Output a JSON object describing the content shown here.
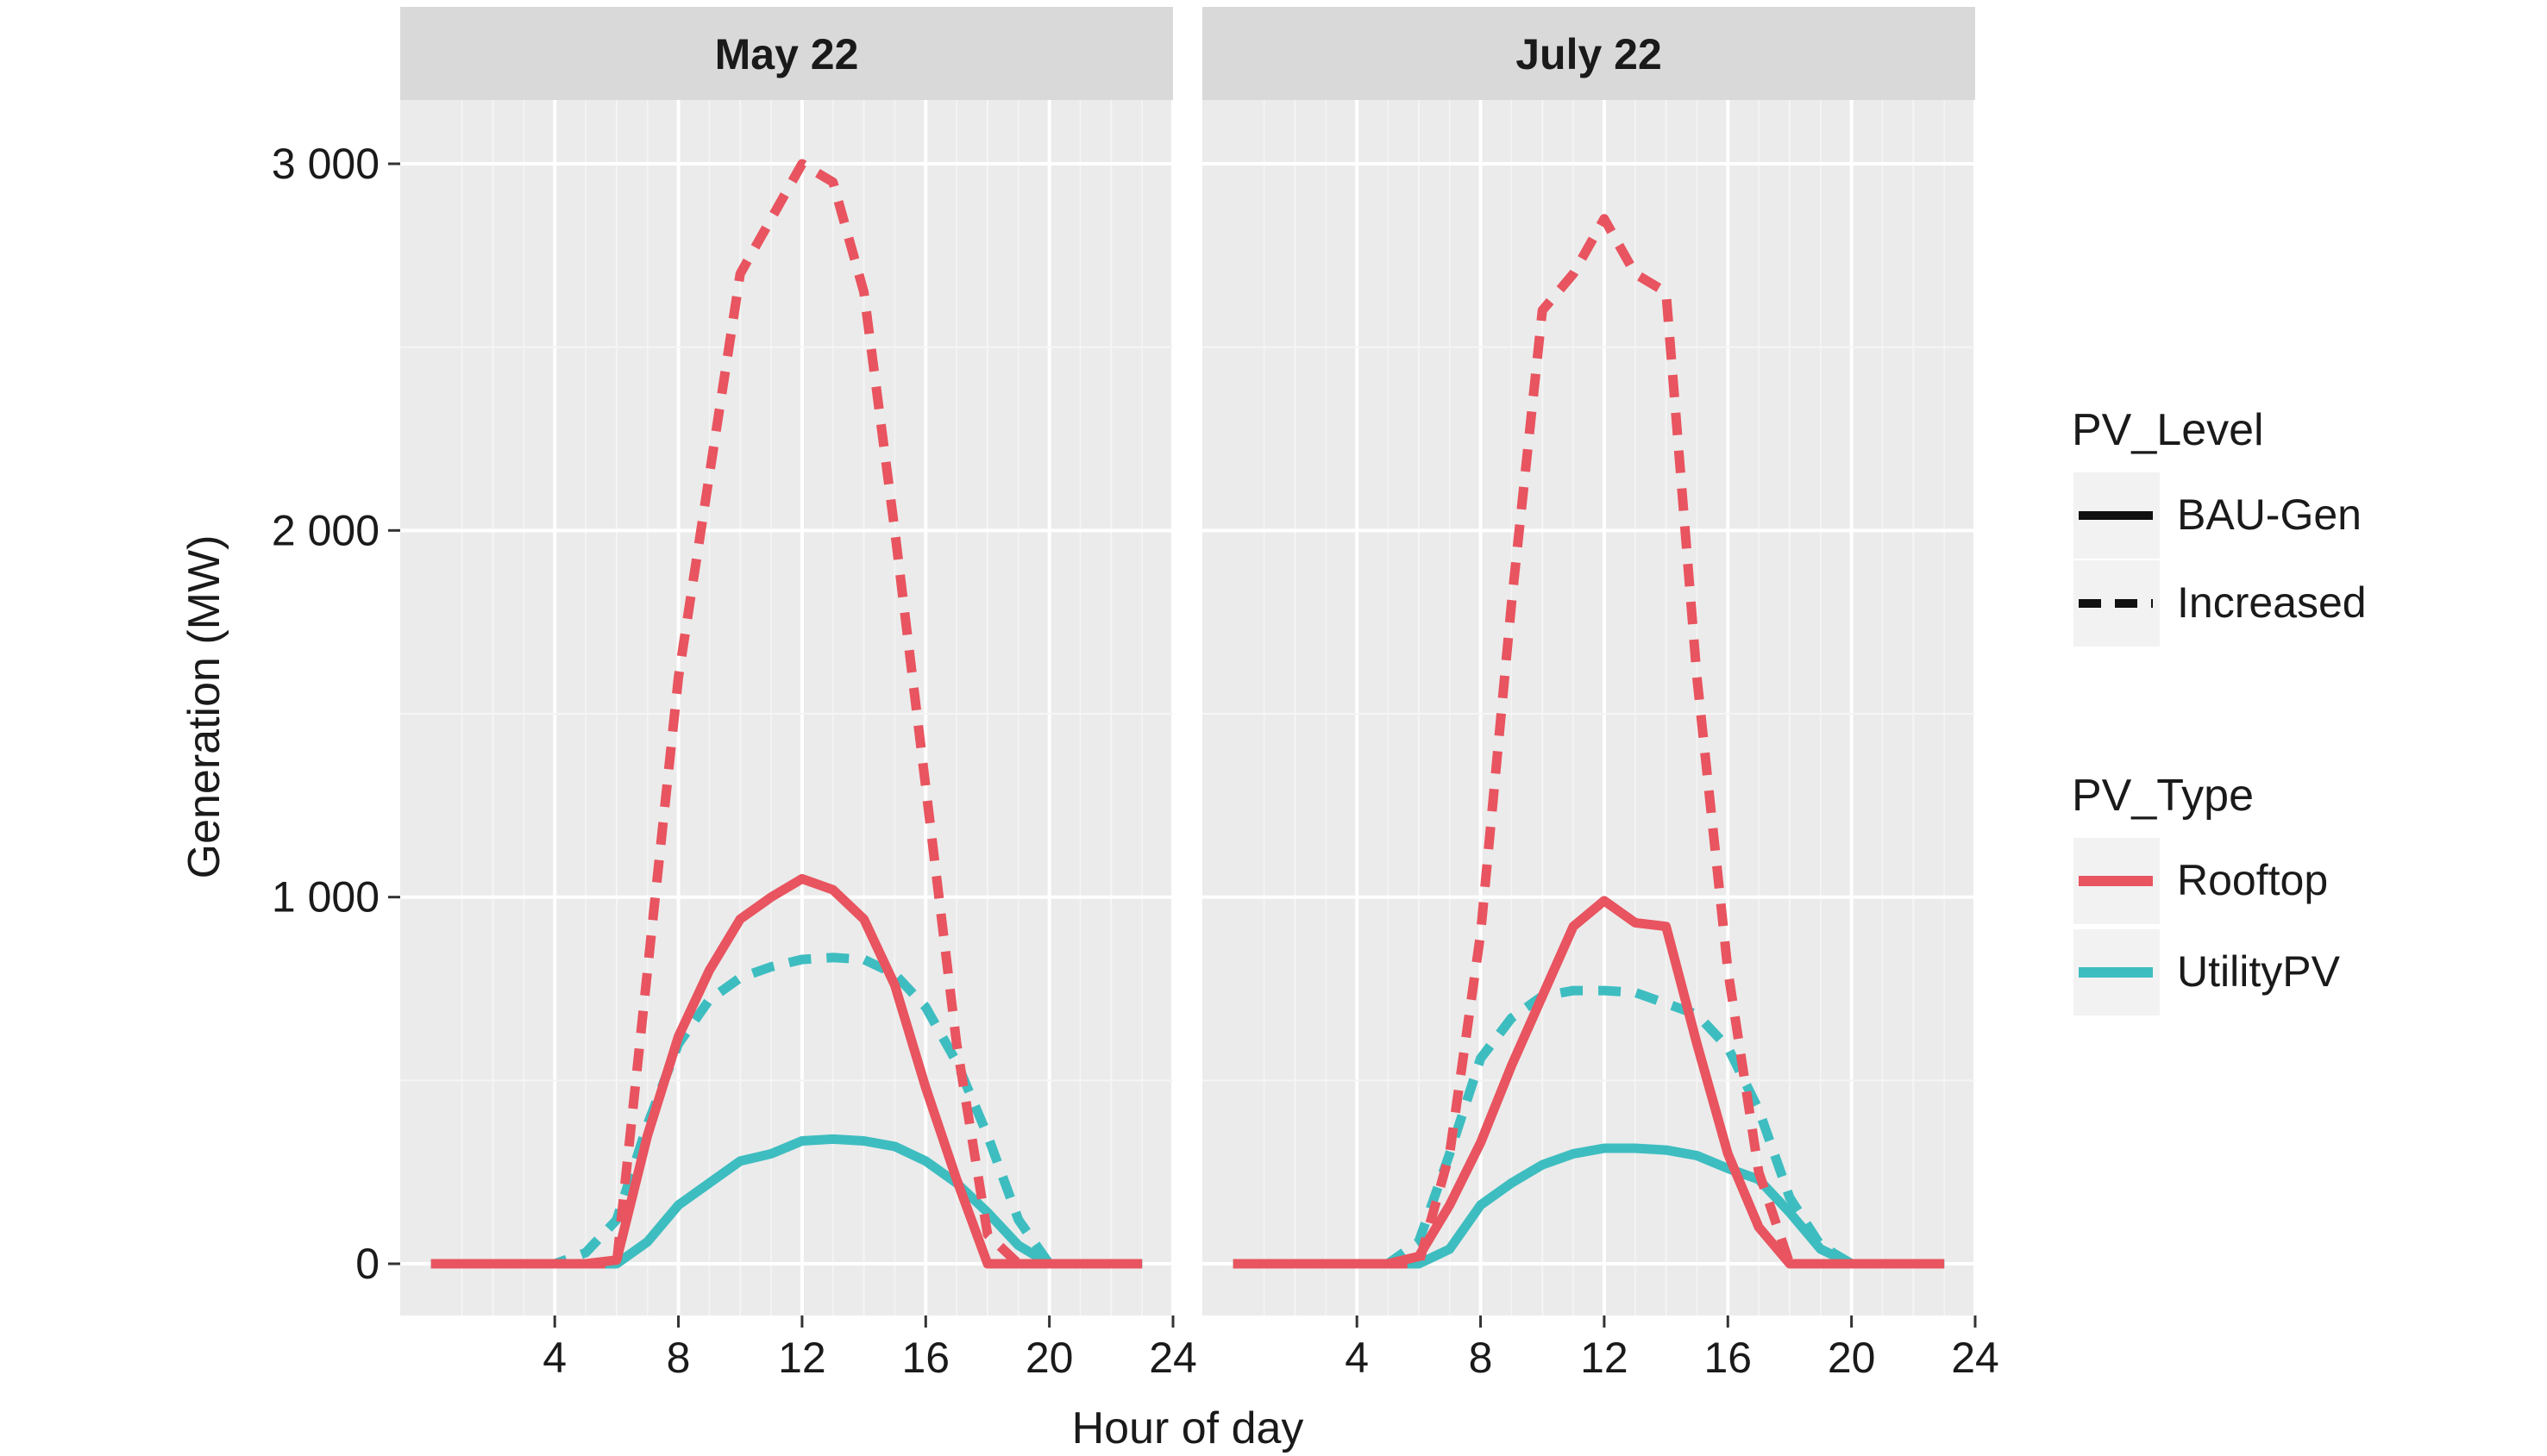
{
  "chart_data": {
    "type": "line",
    "ylabel": "Generation (MW)",
    "xlabel": "Hour of day",
    "xlim": [
      -1,
      24
    ],
    "ylim": [
      -150,
      3000
    ],
    "x_ticks": [
      4,
      8,
      12,
      16,
      20,
      24
    ],
    "y_ticks": [
      0,
      1000,
      2000,
      3000
    ],
    "y_tick_labels": [
      "0",
      "1 000",
      "2 000",
      "3 000"
    ],
    "legend": {
      "position": "right",
      "level_title": "PV_Level",
      "level_items": [
        {
          "label": "BAU-Gen",
          "style": "solid"
        },
        {
          "label": "Increased",
          "style": "dashed"
        }
      ],
      "type_title": "PV_Type",
      "type_items": [
        {
          "label": "Rooftop",
          "color": "#e8545f"
        },
        {
          "label": "UtilityPV",
          "color": "#3ebdc0"
        }
      ]
    },
    "panels": [
      {
        "title": "May 22",
        "series": [
          {
            "type": "UtilityPV",
            "level": "Increased",
            "x": [
              0,
              1,
              2,
              3,
              4,
              5,
              6,
              7,
              8,
              9,
              10,
              11,
              12,
              13,
              14,
              15,
              16,
              17,
              18,
              19,
              20,
              21,
              22,
              23
            ],
            "values": [
              0,
              0,
              0,
              0,
              0,
              30,
              120,
              380,
              600,
              720,
              780,
              810,
              830,
              835,
              830,
              790,
              700,
              550,
              350,
              120,
              0,
              0,
              0,
              0
            ]
          },
          {
            "type": "UtilityPV",
            "level": "BAU-Gen",
            "x": [
              0,
              1,
              2,
              3,
              4,
              5,
              6,
              7,
              8,
              9,
              10,
              11,
              12,
              13,
              14,
              15,
              16,
              17,
              18,
              19,
              20,
              21,
              22,
              23
            ],
            "values": [
              0,
              0,
              0,
              0,
              0,
              0,
              0,
              60,
              160,
              220,
              280,
              300,
              335,
              340,
              335,
              320,
              280,
              220,
              140,
              50,
              0,
              0,
              0,
              0
            ]
          },
          {
            "type": "Rooftop",
            "level": "BAU-Gen",
            "x": [
              0,
              1,
              2,
              3,
              4,
              5,
              6,
              7,
              8,
              9,
              10,
              11,
              12,
              13,
              14,
              15,
              16,
              17,
              18,
              19,
              20,
              21,
              22,
              23
            ],
            "values": [
              0,
              0,
              0,
              0,
              0,
              0,
              10,
              350,
              620,
              800,
              940,
              1000,
              1050,
              1020,
              940,
              760,
              480,
              230,
              0,
              0,
              0,
              0,
              0,
              0
            ]
          },
          {
            "type": "Rooftop",
            "level": "Increased",
            "x": [
              0,
              1,
              2,
              3,
              4,
              5,
              6,
              7,
              8,
              9,
              10,
              11,
              12,
              13,
              14,
              15,
              16,
              17,
              18,
              19,
              20,
              21,
              22,
              23
            ],
            "values": [
              0,
              0,
              0,
              0,
              0,
              0,
              0,
              800,
              1600,
              2150,
              2700,
              2850,
              3000,
              2950,
              2650,
              2000,
              1300,
              600,
              80,
              0,
              0,
              0,
              0,
              0
            ]
          }
        ]
      },
      {
        "title": "July 22",
        "series": [
          {
            "type": "UtilityPV",
            "level": "Increased",
            "x": [
              0,
              1,
              2,
              3,
              4,
              5,
              6,
              7,
              8,
              9,
              10,
              11,
              12,
              13,
              14,
              15,
              16,
              17,
              18,
              19,
              20,
              21,
              22,
              23
            ],
            "values": [
              0,
              0,
              0,
              0,
              0,
              0,
              60,
              300,
              560,
              670,
              730,
              745,
              745,
              740,
              710,
              680,
              590,
              420,
              180,
              50,
              0,
              0,
              0,
              0
            ]
          },
          {
            "type": "UtilityPV",
            "level": "BAU-Gen",
            "x": [
              0,
              1,
              2,
              3,
              4,
              5,
              6,
              7,
              8,
              9,
              10,
              11,
              12,
              13,
              14,
              15,
              16,
              17,
              18,
              19,
              20,
              21,
              22,
              23
            ],
            "values": [
              0,
              0,
              0,
              0,
              0,
              0,
              0,
              40,
              160,
              220,
              270,
              300,
              315,
              315,
              310,
              295,
              260,
              230,
              140,
              40,
              0,
              0,
              0,
              0
            ]
          },
          {
            "type": "Rooftop",
            "level": "BAU-Gen",
            "x": [
              0,
              1,
              2,
              3,
              4,
              5,
              6,
              7,
              8,
              9,
              10,
              11,
              12,
              13,
              14,
              15,
              16,
              17,
              18,
              19,
              20,
              21,
              22,
              23
            ],
            "values": [
              0,
              0,
              0,
              0,
              0,
              0,
              20,
              160,
              330,
              540,
              730,
              920,
              990,
              930,
              920,
              600,
              300,
              100,
              0,
              0,
              0,
              0,
              0,
              0
            ]
          },
          {
            "type": "Rooftop",
            "level": "Increased",
            "x": [
              0,
              1,
              2,
              3,
              4,
              5,
              6,
              7,
              8,
              9,
              10,
              11,
              12,
              13,
              14,
              15,
              16,
              17,
              18,
              19,
              20,
              21,
              22,
              23
            ],
            "values": [
              0,
              0,
              0,
              0,
              0,
              0,
              0,
              300,
              900,
              1800,
              2600,
              2700,
              2850,
              2700,
              2650,
              1600,
              800,
              250,
              0,
              0,
              0,
              0,
              0,
              0
            ]
          }
        ]
      }
    ]
  }
}
